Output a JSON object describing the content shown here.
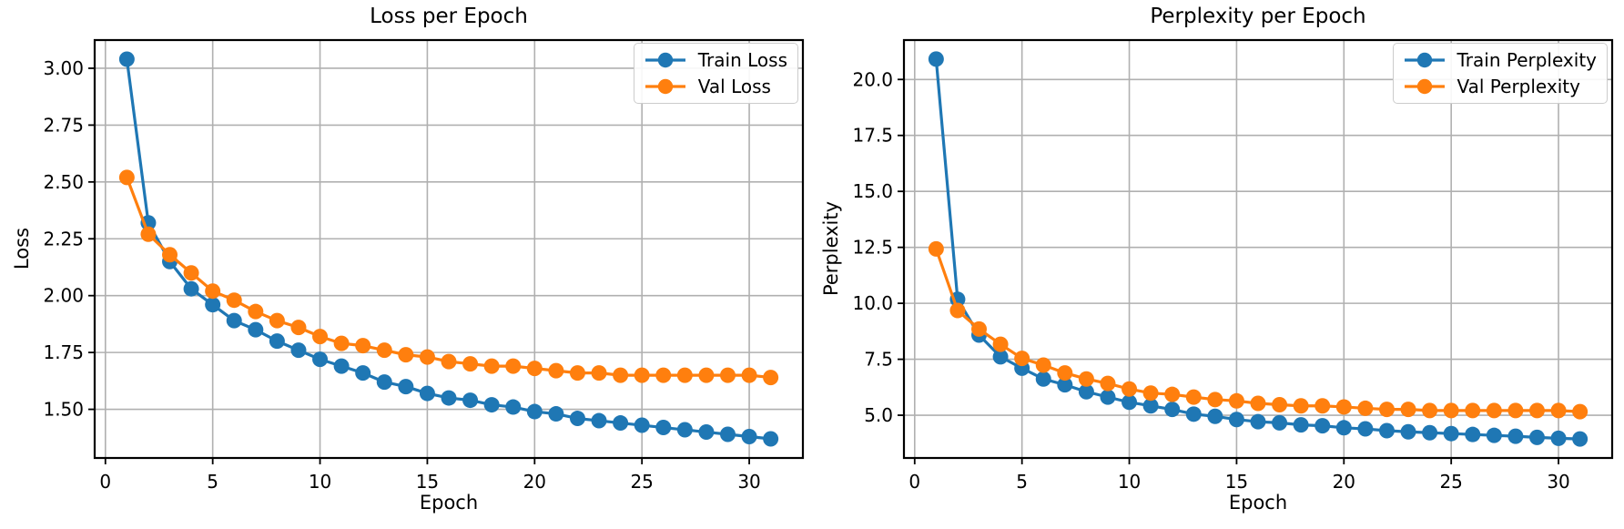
{
  "figure": {
    "background": "#ffffff",
    "grid_color": "#b0b0b0",
    "spine_color": "#000000"
  },
  "chart_data": [
    {
      "type": "line",
      "title": "Loss per Epoch",
      "xlabel": "Epoch",
      "ylabel": "Loss",
      "grid": true,
      "legend_position": "upper right",
      "x": [
        1,
        2,
        3,
        4,
        5,
        6,
        7,
        8,
        9,
        10,
        11,
        12,
        13,
        14,
        15,
        16,
        17,
        18,
        19,
        20,
        21,
        22,
        23,
        24,
        25,
        26,
        27,
        28,
        29,
        30,
        31
      ],
      "series": [
        {
          "name": "Train Loss",
          "color": "#1f77b4",
          "marker": "o",
          "values": [
            3.04,
            2.32,
            2.15,
            2.03,
            1.96,
            1.89,
            1.85,
            1.8,
            1.76,
            1.72,
            1.69,
            1.66,
            1.62,
            1.6,
            1.57,
            1.55,
            1.54,
            1.52,
            1.51,
            1.49,
            1.48,
            1.46,
            1.45,
            1.44,
            1.43,
            1.42,
            1.41,
            1.4,
            1.39,
            1.38,
            1.37
          ]
        },
        {
          "name": "Val Loss",
          "color": "#ff7f0e",
          "marker": "o",
          "values": [
            2.52,
            2.27,
            2.18,
            2.1,
            2.02,
            1.98,
            1.93,
            1.89,
            1.86,
            1.82,
            1.79,
            1.78,
            1.76,
            1.74,
            1.73,
            1.71,
            1.7,
            1.69,
            1.69,
            1.68,
            1.67,
            1.66,
            1.66,
            1.65,
            1.65,
            1.65,
            1.65,
            1.65,
            1.65,
            1.65,
            1.64
          ]
        }
      ],
      "xlim": [
        -0.5,
        32.5
      ],
      "ylim": [
        1.286,
        3.124
      ],
      "xticks": [
        0,
        5,
        10,
        15,
        20,
        25,
        30
      ],
      "xtick_decimals": 0,
      "yticks": [
        1.5,
        1.75,
        2.0,
        2.25,
        2.5,
        2.75,
        3.0
      ],
      "ytick_decimals": 2
    },
    {
      "type": "line",
      "title": "Perplexity per Epoch",
      "xlabel": "Epoch",
      "ylabel": "Perplexity",
      "grid": true,
      "legend_position": "upper right",
      "x": [
        1,
        2,
        3,
        4,
        5,
        6,
        7,
        8,
        9,
        10,
        11,
        12,
        13,
        14,
        15,
        16,
        17,
        18,
        19,
        20,
        21,
        22,
        23,
        24,
        25,
        26,
        27,
        28,
        29,
        30,
        31
      ],
      "series": [
        {
          "name": "Train Perplexity",
          "color": "#1f77b4",
          "marker": "o",
          "values": [
            20.91,
            10.18,
            8.58,
            7.61,
            7.1,
            6.62,
            6.36,
            6.05,
            5.81,
            5.58,
            5.42,
            5.26,
            5.05,
            4.95,
            4.81,
            4.71,
            4.66,
            4.57,
            4.53,
            4.44,
            4.39,
            4.31,
            4.26,
            4.22,
            4.18,
            4.14,
            4.1,
            4.06,
            4.01,
            3.97,
            3.94
          ]
        },
        {
          "name": "Val Perplexity",
          "color": "#ff7f0e",
          "marker": "o",
          "values": [
            12.43,
            9.68,
            8.85,
            8.17,
            7.54,
            7.24,
            6.89,
            6.62,
            6.42,
            6.17,
            5.99,
            5.93,
            5.81,
            5.7,
            5.64,
            5.53,
            5.47,
            5.42,
            5.42,
            5.37,
            5.31,
            5.26,
            5.26,
            5.21,
            5.21,
            5.21,
            5.21,
            5.21,
            5.21,
            5.21,
            5.16
          ]
        }
      ],
      "xlim": [
        -0.5,
        32.5
      ],
      "ylim": [
        3.09,
        21.76
      ],
      "xticks": [
        0,
        5,
        10,
        15,
        20,
        25,
        30
      ],
      "xtick_decimals": 0,
      "yticks": [
        5.0,
        7.5,
        10.0,
        12.5,
        15.0,
        17.5,
        20.0
      ],
      "ytick_decimals": 1
    }
  ]
}
